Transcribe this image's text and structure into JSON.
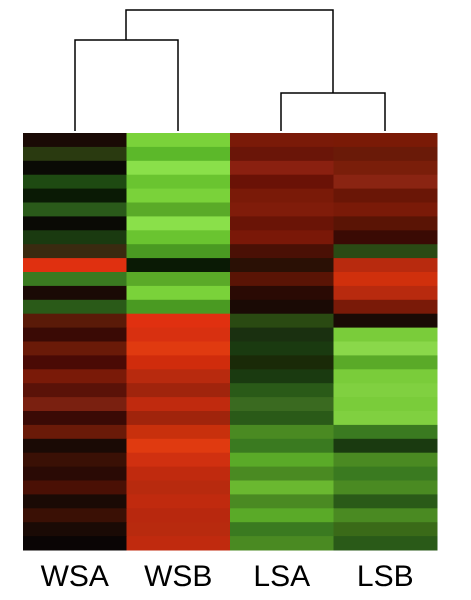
{
  "chart_data": {
    "type": "heatmap",
    "columns": [
      "WSA",
      "WSB",
      "LSA",
      "LSB"
    ],
    "cell_colors": [
      [
        "#1a0a05",
        "#7ad23a",
        "#7a1a08",
        "#7a1a06"
      ],
      [
        "#2a3a10",
        "#5cb82a",
        "#6a1508",
        "#6a1a08"
      ],
      [
        "#0a0a05",
        "#8ae04a",
        "#8a2010",
        "#7a1e0a"
      ],
      [
        "#1e4a12",
        "#6ac430",
        "#6a1206",
        "#8a2412"
      ],
      [
        "#0a1a05",
        "#7ad23a",
        "#7a1a08",
        "#6a1606"
      ],
      [
        "#2a5a1a",
        "#5aaa28",
        "#801c0a",
        "#7a1a08"
      ],
      [
        "#0a0a05",
        "#8ae04a",
        "#6a1406",
        "#5a1405"
      ],
      [
        "#1a3a10",
        "#6ac430",
        "#7a1808",
        "#3a0a04"
      ],
      [
        "#3a2a10",
        "#4a9a22",
        "#4a1005",
        "#2a4a14"
      ],
      [
        "#e03010",
        "#0a1a05",
        "#2a1005",
        "#b82a0e"
      ],
      [
        "#3a7a20",
        "#5aaa28",
        "#5a1405",
        "#d0300c"
      ],
      [
        "#1a0a05",
        "#7ad23a",
        "#2a0a04",
        "#b82a0e"
      ],
      [
        "#2a5a18",
        "#4a9a22",
        "#1a0a05",
        "#7a1a08"
      ],
      [
        "#5a1a08",
        "#e03010",
        "#2a4a12",
        "#1a0a05"
      ],
      [
        "#3a0a05",
        "#d83010",
        "#1a3010",
        "#7acc3a"
      ],
      [
        "#6a1a08",
        "#e03a10",
        "#1a3a10",
        "#8ad84a"
      ],
      [
        "#4a0a05",
        "#d02c0c",
        "#1a2a08",
        "#5aaa28"
      ],
      [
        "#7a1a08",
        "#b82a0e",
        "#1a3a10",
        "#7acc3a"
      ],
      [
        "#5a1208",
        "#a0240c",
        "#2a5a18",
        "#80d040"
      ],
      [
        "#7a2010",
        "#c02a0e",
        "#3a6a20",
        "#7acc3a"
      ],
      [
        "#3a0a05",
        "#a0240c",
        "#2a5a18",
        "#80d040"
      ],
      [
        "#6a1a08",
        "#c8300c",
        "#4a8a22",
        "#3a7a20"
      ],
      [
        "#1a0a05",
        "#e03a10",
        "#3a7a20",
        "#1a3a10"
      ],
      [
        "#3a1005",
        "#d03010",
        "#5aaa28",
        "#4a8a22"
      ],
      [
        "#2a0a05",
        "#c02a0e",
        "#4a8a22",
        "#3a7a20"
      ],
      [
        "#4a1005",
        "#b82a0e",
        "#6ab830",
        "#4a8a22"
      ],
      [
        "#1a0a05",
        "#c02a0e",
        "#4a8a22",
        "#2a5a18"
      ],
      [
        "#3a1005",
        "#b8280e",
        "#5aaa28",
        "#4a8a22"
      ],
      [
        "#1a0a05",
        "#b82a0e",
        "#3a7a20",
        "#3a6a18"
      ],
      [
        "#0a0505",
        "#c02a0e",
        "#4a8a22",
        "#2a5a18"
      ]
    ]
  }
}
